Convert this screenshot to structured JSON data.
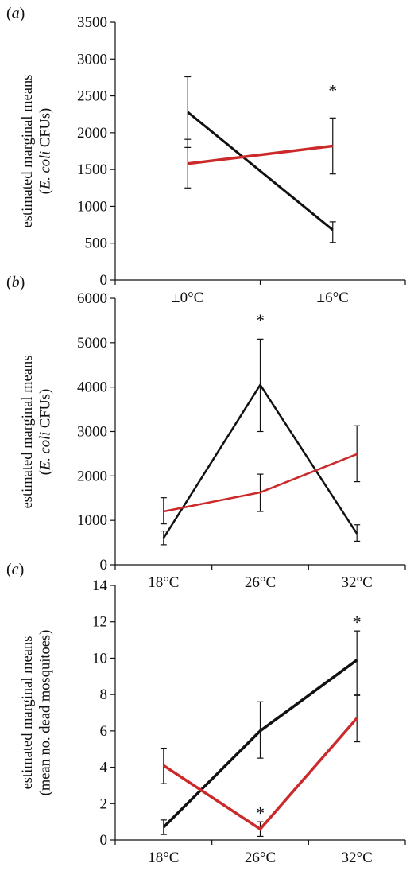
{
  "colors": {
    "series1": "#111111",
    "series2": "#cc2a2a",
    "axis": "#111111"
  },
  "chart_data": [
    {
      "type": "line",
      "panel_label": "(a)",
      "ylabel_line1": "estimated marginal means",
      "ylabel_line2_pre": "(",
      "ylabel_line2_italic": "E. coli",
      "ylabel_line2_post": " CFUs)",
      "categories": [
        "±0°C",
        "±6°C"
      ],
      "ylim": [
        0,
        3500
      ],
      "yticks": [
        0,
        500,
        1000,
        1500,
        2000,
        2500,
        3000,
        3500
      ],
      "series": [
        {
          "values": [
            2280,
            680
          ],
          "err_low": [
            1800,
            510
          ],
          "err_high": [
            2760,
            790
          ],
          "stroke": 3
        },
        {
          "values": [
            1580,
            1820
          ],
          "err_low": [
            1250,
            1440
          ],
          "err_high": [
            1910,
            2200
          ],
          "stroke": 3.5
        }
      ],
      "annotations": [
        {
          "text": "*",
          "category_index": 1,
          "y": 2600
        }
      ]
    },
    {
      "type": "line",
      "panel_label": "(b)",
      "ylabel_line1": "estimated marginal means",
      "ylabel_line2_pre": "(",
      "ylabel_line2_italic": "E. coli",
      "ylabel_line2_post": " CFUs)",
      "categories": [
        "18°C",
        "26°C",
        "32°C"
      ],
      "ylim": [
        0,
        6000
      ],
      "yticks": [
        0,
        1000,
        2000,
        3000,
        4000,
        5000,
        6000
      ],
      "series": [
        {
          "values": [
            600,
            4050,
            700
          ],
          "err_low": [
            450,
            3000,
            530
          ],
          "err_high": [
            760,
            5080,
            900
          ],
          "stroke": 2.5
        },
        {
          "values": [
            1200,
            1630,
            2490
          ],
          "err_low": [
            920,
            1200,
            1870
          ],
          "err_high": [
            1510,
            2040,
            3130
          ],
          "stroke": 2.5
        }
      ],
      "annotations": [
        {
          "text": "*",
          "category_index": 1,
          "y": 5550
        }
      ]
    },
    {
      "type": "line",
      "panel_label": "(c)",
      "ylabel_line1": "estimated marginal means",
      "ylabel_line2_pre": "(mean no. dead mosquitoes)",
      "ylabel_line2_italic": "",
      "ylabel_line2_post": "",
      "categories": [
        "18°C",
        "26°C",
        "32°C"
      ],
      "ylim": [
        0,
        14
      ],
      "yticks": [
        0,
        2,
        4,
        6,
        8,
        10,
        12,
        14
      ],
      "series": [
        {
          "values": [
            0.7,
            6.0,
            9.9
          ],
          "err_low": [
            0.3,
            4.5,
            8.0
          ],
          "err_high": [
            1.1,
            7.6,
            11.5
          ],
          "stroke": 3.5
        },
        {
          "values": [
            4.1,
            0.6,
            6.7
          ],
          "err_low": [
            3.1,
            0.2,
            5.4
          ],
          "err_high": [
            5.05,
            1.0,
            7.95
          ],
          "stroke": 3.5
        }
      ],
      "annotations": [
        {
          "text": "*",
          "category_index": 2,
          "y": 12.1
        },
        {
          "text": "*",
          "category_index": 1,
          "y": 1.6
        }
      ]
    }
  ]
}
